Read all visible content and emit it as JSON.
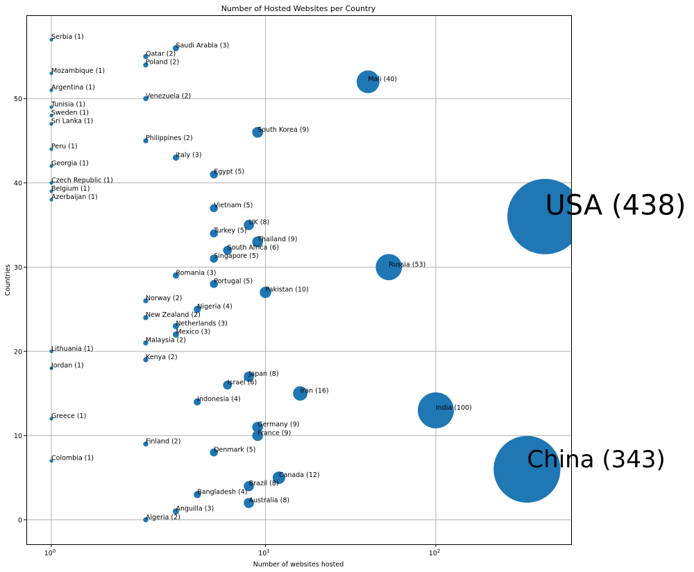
{
  "chart_data": {
    "type": "scatter",
    "title": "Number of Hosted Websites per Country",
    "xlabel": "Number of websites hosted",
    "ylabel": "Countries",
    "xscale": "log",
    "xticks": [
      {
        "value": 1,
        "base": "10",
        "exp": "0"
      },
      {
        "value": 10,
        "base": "10",
        "exp": "1"
      },
      {
        "value": 100,
        "base": "10",
        "exp": "2"
      }
    ],
    "yticks": [
      0,
      10,
      20,
      30,
      40,
      50
    ],
    "ylim": [
      -2.9,
      59.9
    ],
    "grid": true,
    "marker_color": "#1f77b4",
    "size_encoding": "bubble area proportional to number of websites hosted",
    "points": [
      {
        "country": "Algeria",
        "y": 0,
        "count": 2
      },
      {
        "country": "Anguilla",
        "y": 1,
        "count": 3
      },
      {
        "country": "Australia",
        "y": 2,
        "count": 8
      },
      {
        "country": "Bangladesh",
        "y": 3,
        "count": 4
      },
      {
        "country": "Brazil",
        "y": 4,
        "count": 8
      },
      {
        "country": "Canada",
        "y": 5,
        "count": 12
      },
      {
        "country": "China",
        "y": 6,
        "count": 343,
        "big_label": true
      },
      {
        "country": "Colombia",
        "y": 7,
        "count": 1
      },
      {
        "country": "Denmark",
        "y": 8,
        "count": 5
      },
      {
        "country": "Finland",
        "y": 9,
        "count": 2
      },
      {
        "country": "France",
        "y": 10,
        "count": 9
      },
      {
        "country": "Germany",
        "y": 11,
        "count": 9
      },
      {
        "country": "Greece",
        "y": 12,
        "count": 1
      },
      {
        "country": "India",
        "y": 13,
        "count": 100
      },
      {
        "country": "Indonesia",
        "y": 14,
        "count": 4
      },
      {
        "country": "Iran",
        "y": 15,
        "count": 16
      },
      {
        "country": "Israel",
        "y": 16,
        "count": 6
      },
      {
        "country": "Japan",
        "y": 17,
        "count": 8
      },
      {
        "country": "Jordan",
        "y": 18,
        "count": 1
      },
      {
        "country": "Kenya",
        "y": 19,
        "count": 2
      },
      {
        "country": "Lithuania",
        "y": 20,
        "count": 1
      },
      {
        "country": "Malaysia",
        "y": 21,
        "count": 2
      },
      {
        "country": "Mexico",
        "y": 22,
        "count": 3
      },
      {
        "country": "Netherlands",
        "y": 23,
        "count": 3
      },
      {
        "country": "New Zealand",
        "y": 24,
        "count": 2
      },
      {
        "country": "Nigeria",
        "y": 25,
        "count": 4
      },
      {
        "country": "Norway",
        "y": 26,
        "count": 2
      },
      {
        "country": "Pakistan",
        "y": 27,
        "count": 10
      },
      {
        "country": "Portugal",
        "y": 28,
        "count": 5
      },
      {
        "country": "Romania",
        "y": 29,
        "count": 3
      },
      {
        "country": "Russia",
        "y": 30,
        "count": 53
      },
      {
        "country": "Singapore",
        "y": 31,
        "count": 5
      },
      {
        "country": "South Africa",
        "y": 32,
        "count": 6
      },
      {
        "country": "Thailand",
        "y": 33,
        "count": 9
      },
      {
        "country": "Turkey",
        "y": 34,
        "count": 5
      },
      {
        "country": "UK",
        "y": 35,
        "count": 8
      },
      {
        "country": "USA",
        "y": 36,
        "count": 438,
        "big_label": true
      },
      {
        "country": "Vietnam",
        "y": 37,
        "count": 5
      },
      {
        "country": "Azerbaijan",
        "y": 38,
        "count": 1
      },
      {
        "country": "Belgium",
        "y": 39,
        "count": 1
      },
      {
        "country": "Czech Republic",
        "y": 40,
        "count": 1
      },
      {
        "country": "Egypt",
        "y": 41,
        "count": 5
      },
      {
        "country": "Georgia",
        "y": 42,
        "count": 1
      },
      {
        "country": "Italy",
        "y": 43,
        "count": 3
      },
      {
        "country": "Peru",
        "y": 44,
        "count": 1
      },
      {
        "country": "Philippines",
        "y": 45,
        "count": 2
      },
      {
        "country": "South Korea",
        "y": 46,
        "count": 9
      },
      {
        "country": "Sri Lanka",
        "y": 47,
        "count": 1
      },
      {
        "country": "Sweden",
        "y": 48,
        "count": 1
      },
      {
        "country": "Tunisia",
        "y": 49,
        "count": 1
      },
      {
        "country": "Venezuela",
        "y": 50,
        "count": 2
      },
      {
        "country": "Argentina",
        "y": 51,
        "count": 1
      },
      {
        "country": "Mali",
        "y": 52,
        "count": 40
      },
      {
        "country": "Mozambique",
        "y": 53,
        "count": 1
      },
      {
        "country": "Poland",
        "y": 54,
        "count": 2
      },
      {
        "country": "Qatar",
        "y": 55,
        "count": 2
      },
      {
        "country": "Saudi Arabia",
        "y": 56,
        "count": 3
      },
      {
        "country": "Serbia",
        "y": 57,
        "count": 1
      }
    ]
  }
}
